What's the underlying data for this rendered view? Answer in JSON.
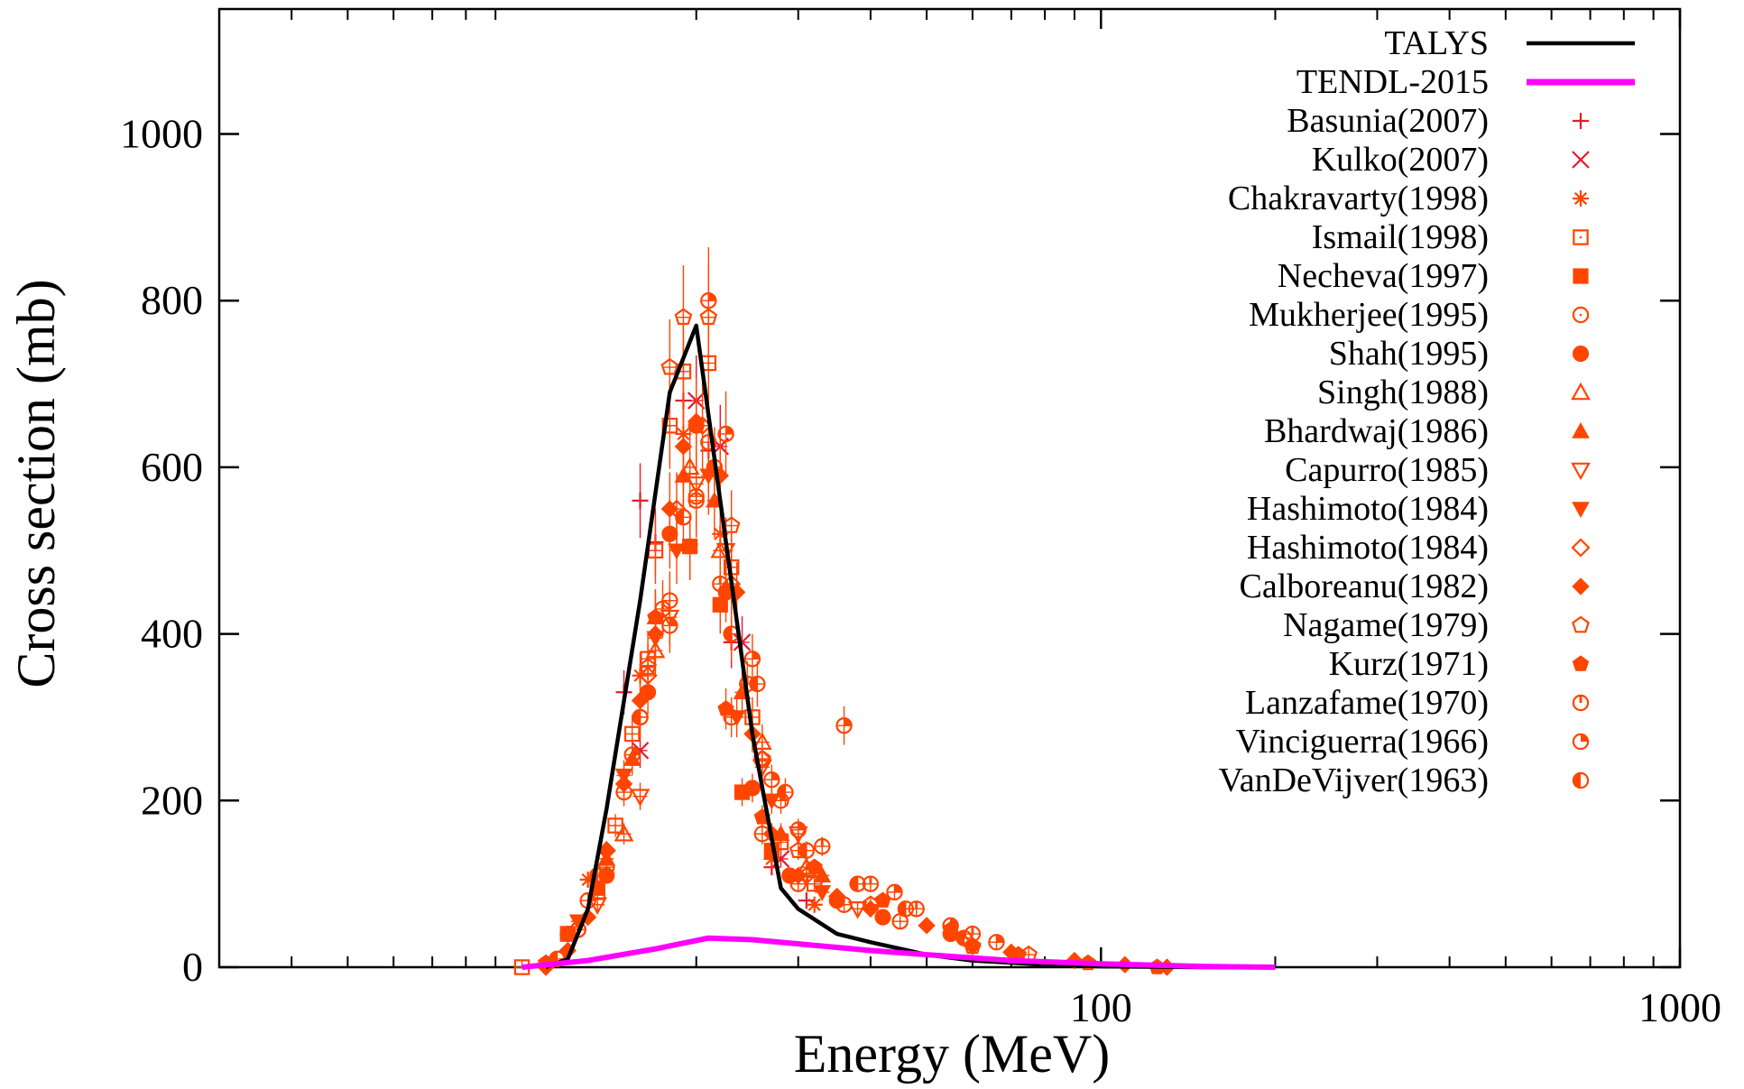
{
  "colors": {
    "talys": "#000000",
    "tendl": "#ff00ff",
    "experimental": "#ff4500",
    "basunia_kulko": "#e8182c"
  },
  "chart_data": {
    "type": "scatter",
    "xlabel": "Energy (MeV)",
    "ylabel": "Cross section (mb)",
    "xscale": "log",
    "xlim": [
      3,
      1000
    ],
    "ylim": [
      0,
      1000
    ],
    "x_ticks": [
      {
        "value": 100,
        "label": "100"
      },
      {
        "value": 1000,
        "label": "1000"
      }
    ],
    "y_ticks": [
      {
        "value": 0,
        "label": "0"
      },
      {
        "value": 200,
        "label": "200"
      },
      {
        "value": 400,
        "label": "400"
      },
      {
        "value": 600,
        "label": "600"
      },
      {
        "value": 800,
        "label": "800"
      },
      {
        "value": 1000,
        "label": "1000"
      }
    ],
    "legend_position": "top-right",
    "lines": [
      {
        "name": "TALYS",
        "color": "#000000",
        "points": [
          [
            11,
            0
          ],
          [
            12,
            10
          ],
          [
            13,
            70
          ],
          [
            14,
            190
          ],
          [
            16,
            440
          ],
          [
            18,
            690
          ],
          [
            20,
            770
          ],
          [
            22,
            560
          ],
          [
            25,
            280
          ],
          [
            28,
            95
          ],
          [
            30,
            70
          ],
          [
            35,
            40
          ],
          [
            40,
            30
          ],
          [
            50,
            15
          ],
          [
            60,
            8
          ],
          [
            80,
            3
          ],
          [
            100,
            1
          ],
          [
            150,
            0
          ],
          [
            200,
            0
          ]
        ]
      },
      {
        "name": "TENDL-2015",
        "color": "#ff00ff",
        "points": [
          [
            10,
            0
          ],
          [
            13,
            8
          ],
          [
            17,
            22
          ],
          [
            21,
            35
          ],
          [
            25,
            33
          ],
          [
            30,
            28
          ],
          [
            40,
            20
          ],
          [
            50,
            15
          ],
          [
            70,
            8
          ],
          [
            100,
            4
          ],
          [
            150,
            1
          ],
          [
            200,
            0
          ]
        ]
      }
    ],
    "series": [
      {
        "name": "Basunia(2007)",
        "marker": "plus",
        "color": "#e8182c",
        "points": [
          [
            15,
            330
          ],
          [
            16,
            560
          ],
          [
            17,
            510
          ],
          [
            19,
            680
          ],
          [
            21,
            620
          ],
          [
            23,
            390
          ],
          [
            27,
            120
          ],
          [
            31,
            80
          ]
        ]
      },
      {
        "name": "Kulko(2007)",
        "marker": "cross",
        "color": "#e8182c",
        "points": [
          [
            16,
            260
          ],
          [
            20,
            680
          ],
          [
            22,
            625
          ],
          [
            24,
            390
          ],
          [
            28,
            130
          ]
        ]
      },
      {
        "name": "Chakravarty(1998)",
        "marker": "star",
        "color": "#ff4500",
        "points": [
          [
            13,
            105
          ],
          [
            16,
            350
          ],
          [
            19,
            640
          ],
          [
            22,
            520
          ],
          [
            27,
            130
          ],
          [
            32,
            75
          ]
        ]
      },
      {
        "name": "Ismail(1998)",
        "marker": "square-open",
        "color": "#ff4500",
        "points": [
          [
            10,
            0
          ],
          [
            12,
            40
          ],
          [
            13.5,
            90
          ],
          [
            14.5,
            170
          ],
          [
            15.5,
            280
          ],
          [
            16.5,
            370
          ],
          [
            17,
            500
          ],
          [
            18,
            650
          ],
          [
            19,
            715
          ],
          [
            21,
            725
          ],
          [
            23,
            480
          ],
          [
            25,
            300
          ],
          [
            28,
            150
          ],
          [
            32,
            100
          ]
        ]
      },
      {
        "name": "Necheva(1997)",
        "marker": "square-filled",
        "color": "#ff4500",
        "points": [
          [
            13.5,
            95
          ],
          [
            19.5,
            505
          ],
          [
            22,
            435
          ],
          [
            24,
            210
          ],
          [
            27,
            140
          ]
        ]
      },
      {
        "name": "Mukherjee(1995)",
        "marker": "circle-open",
        "color": "#ff4500",
        "points": [
          [
            12.5,
            45
          ],
          [
            14,
            120
          ],
          [
            16,
            300
          ],
          [
            18,
            440
          ],
          [
            20,
            560
          ],
          [
            21,
            630
          ],
          [
            23,
            300
          ],
          [
            26,
            160
          ],
          [
            30,
            100
          ],
          [
            36,
            75
          ],
          [
            45,
            55
          ]
        ]
      },
      {
        "name": "Shah(1995)",
        "marker": "circle-filled",
        "color": "#ff4500",
        "points": [
          [
            12,
            40
          ],
          [
            14,
            110
          ],
          [
            16.5,
            330
          ],
          [
            18,
            520
          ],
          [
            20,
            650
          ],
          [
            22.5,
            450
          ],
          [
            25,
            215
          ],
          [
            29,
            110
          ],
          [
            35,
            80
          ],
          [
            42,
            60
          ],
          [
            55,
            40
          ]
        ]
      },
      {
        "name": "Singh(1988)",
        "marker": "triangle-up-open",
        "color": "#ff4500",
        "points": [
          [
            15,
            160
          ],
          [
            17,
            380
          ],
          [
            19.5,
            600
          ],
          [
            22,
            500
          ],
          [
            26,
            270
          ],
          [
            31,
            120
          ]
        ]
      },
      {
        "name": "Bhardwaj(1986)",
        "marker": "triangle-up-filled",
        "color": "#ff4500",
        "points": [
          [
            14,
            130
          ],
          [
            15.5,
            250
          ],
          [
            17,
            420
          ],
          [
            19,
            590
          ],
          [
            21.5,
            560
          ],
          [
            24,
            330
          ],
          [
            28,
            160
          ],
          [
            33,
            110
          ]
        ]
      },
      {
        "name": "Capurro(1985)",
        "marker": "triangle-down-open",
        "color": "#ff4500",
        "points": [
          [
            13.5,
            75
          ],
          [
            16,
            205
          ],
          [
            18,
            420
          ],
          [
            20,
            580
          ],
          [
            22.5,
            500
          ],
          [
            26,
            240
          ],
          [
            30,
            160
          ],
          [
            38,
            70
          ]
        ]
      },
      {
        "name": "Hashimoto(1984)",
        "marker": "triangle-down-filled",
        "color": "#ff4500",
        "points": [
          [
            12.5,
            55
          ],
          [
            15,
            230
          ],
          [
            17,
            395
          ],
          [
            18.5,
            500
          ],
          [
            21,
            590
          ],
          [
            23.5,
            300
          ],
          [
            27,
            200
          ],
          [
            33,
            90
          ]
        ]
      },
      {
        "name": "Hashimoto(1984)",
        "marker": "diamond-open",
        "color": "#ff4500",
        "points": [
          [
            14,
            140
          ],
          [
            16.5,
            350
          ],
          [
            18.5,
            550
          ],
          [
            20.5,
            650
          ],
          [
            23,
            460
          ],
          [
            26,
            250
          ],
          [
            31,
            110
          ]
        ]
      },
      {
        "name": "Calboreanu(1982)",
        "marker": "diamond-filled",
        "color": "#ff4500",
        "points": [
          [
            11,
            0
          ],
          [
            12,
            20
          ],
          [
            13,
            60
          ],
          [
            14,
            140
          ],
          [
            15,
            220
          ],
          [
            16,
            320
          ],
          [
            17,
            400
          ],
          [
            18,
            550
          ],
          [
            19,
            625
          ],
          [
            20,
            655
          ],
          [
            22,
            590
          ],
          [
            23.5,
            450
          ],
          [
            25,
            280
          ],
          [
            27,
            160
          ],
          [
            30,
            110
          ],
          [
            35,
            85
          ],
          [
            40,
            70
          ],
          [
            50,
            50
          ],
          [
            60,
            25
          ],
          [
            70,
            18
          ],
          [
            90,
            8
          ],
          [
            110,
            3
          ],
          [
            130,
            0
          ]
        ]
      },
      {
        "name": "Nagame(1979)",
        "marker": "pentagon-open",
        "color": "#ff4500",
        "points": [
          [
            16.5,
            360
          ],
          [
            18,
            720
          ],
          [
            19,
            780
          ],
          [
            21,
            780
          ],
          [
            23,
            530
          ],
          [
            26,
            250
          ],
          [
            30,
            140
          ],
          [
            40,
            75
          ],
          [
            60,
            25
          ],
          [
            75,
            15
          ]
        ]
      },
      {
        "name": "Kurz(1971)",
        "marker": "pentagon-filled",
        "color": "#ff4500",
        "points": [
          [
            11,
            5
          ],
          [
            14,
            110
          ],
          [
            17,
            420
          ],
          [
            19.5,
            505
          ],
          [
            22.5,
            310
          ],
          [
            26,
            180
          ],
          [
            32,
            120
          ],
          [
            42,
            80
          ],
          [
            55,
            45
          ],
          [
            72,
            15
          ],
          [
            95,
            5
          ],
          [
            125,
            0
          ]
        ]
      },
      {
        "name": "Lanzafame(1970)",
        "marker": "circle-half1",
        "color": "#ff4500",
        "points": [
          [
            12.5,
            45
          ],
          [
            15,
            210
          ],
          [
            17.5,
            430
          ],
          [
            20,
            565
          ],
          [
            22,
            460
          ],
          [
            24.5,
            340
          ],
          [
            28,
            200
          ],
          [
            33,
            145
          ],
          [
            40,
            100
          ],
          [
            48,
            70
          ],
          [
            60,
            40
          ]
        ]
      },
      {
        "name": "Vinciguerra(1966)",
        "marker": "circle-half2",
        "color": "#ff4500",
        "points": [
          [
            13,
            80
          ],
          [
            15.5,
            255
          ],
          [
            18,
            410
          ],
          [
            21,
            800
          ],
          [
            22.5,
            640
          ],
          [
            25,
            370
          ],
          [
            27,
            225
          ],
          [
            30,
            165
          ],
          [
            36,
            290
          ],
          [
            44,
            90
          ],
          [
            55,
            50
          ],
          [
            66,
            30
          ]
        ]
      },
      {
        "name": "VanDeVijver(1963)",
        "marker": "circle-half3",
        "color": "#ff4500",
        "points": [
          [
            11.5,
            10
          ],
          [
            13.5,
            110
          ],
          [
            16,
            300
          ],
          [
            19,
            540
          ],
          [
            21.5,
            600
          ],
          [
            23,
            400
          ],
          [
            25.5,
            340
          ],
          [
            28.5,
            210
          ],
          [
            31,
            140
          ],
          [
            38,
            100
          ],
          [
            46,
            70
          ],
          [
            58,
            35
          ]
        ]
      }
    ]
  }
}
